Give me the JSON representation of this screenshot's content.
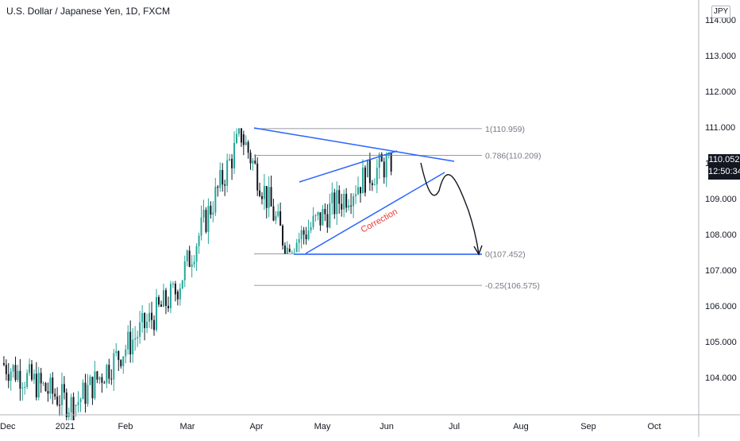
{
  "chart_data": {
    "type": "candlestick",
    "title": "U.S. Dollar / Japanese Yen, 1D, FXCM",
    "currency": "JPY",
    "x_ticks": [
      "Dec",
      "2021",
      "Feb",
      "Mar",
      "Apr",
      "May",
      "Jun",
      "Jul",
      "Aug",
      "Sep",
      "Oct"
    ],
    "y_ticks": [
      "104.000",
      "105.000",
      "106.000",
      "107.000",
      "108.000",
      "109.000",
      "110.000",
      "111.000",
      "112.000",
      "113.000",
      "114.000"
    ],
    "ylim": [
      103.0,
      114.5
    ],
    "last_price": "110.052",
    "countdown": "12:50:34",
    "fib_levels": [
      {
        "ratio": 1,
        "price": 110.959,
        "label": "1(110.959)"
      },
      {
        "ratio": 0.786,
        "price": 110.209,
        "label": "0.786(110.209)"
      },
      {
        "ratio": 0,
        "price": 107.452,
        "label": "0(107.452)"
      },
      {
        "ratio": -0.25,
        "price": 106.575,
        "label": "-0.25(106.575)"
      }
    ],
    "annotations": [
      "Correction"
    ],
    "colors": {
      "up": "#26a69a",
      "down": "#131722",
      "trendline": "#2962ff",
      "fib": "#787b86",
      "annotation": "#e53935"
    },
    "segments": [
      {
        "start": "2020-12-01",
        "end": "2021-01-06",
        "open": 104.4,
        "close": 103.2,
        "high": 104.7,
        "low": 102.8
      },
      {
        "start": "2021-01-06",
        "end": "2021-02-26",
        "open": 103.2,
        "close": 106.4,
        "high": 106.7,
        "low": 102.9
      },
      {
        "start": "2021-02-26",
        "end": "2021-03-31",
        "open": 106.4,
        "close": 110.8,
        "high": 110.97,
        "low": 105.9
      },
      {
        "start": "2021-03-31",
        "end": "2021-04-23",
        "open": 110.8,
        "close": 107.6,
        "high": 110.9,
        "low": 107.45
      },
      {
        "start": "2021-04-23",
        "end": "2021-06-01",
        "open": 107.6,
        "close": 109.6,
        "high": 110.3,
        "low": 107.5
      },
      {
        "start": "2021-06-01",
        "end": "2021-06-14",
        "open": 109.6,
        "close": 110.05,
        "high": 110.3,
        "low": 109.15
      }
    ]
  }
}
